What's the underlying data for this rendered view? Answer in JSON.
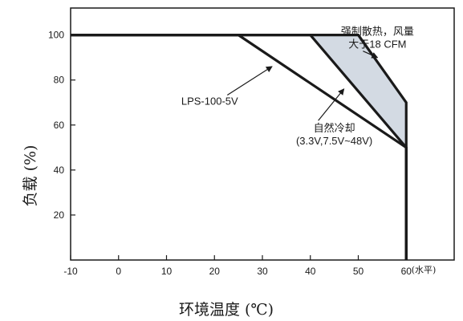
{
  "chart_data": {
    "type": "line",
    "xlabel": "环境温度 (℃)",
    "ylabel": "负载 (%)",
    "x_unit_label": "(水平)",
    "xlim": [
      -10,
      70
    ],
    "ylim": [
      0,
      112
    ],
    "x_ticks": [
      -10,
      0,
      10,
      20,
      30,
      40,
      50,
      60
    ],
    "y_ticks": [
      20,
      40,
      60,
      80,
      100
    ],
    "grid": false,
    "shaded_region": {
      "color": "#d3dae3",
      "points": [
        [
          40,
          100
        ],
        [
          50,
          100
        ],
        [
          60,
          70
        ],
        [
          60,
          50
        ]
      ]
    },
    "series": [
      {
        "name": "LPS-100-5V",
        "x": [
          -10,
          25,
          60,
          60
        ],
        "y": [
          100,
          100,
          50,
          0
        ]
      },
      {
        "name": "自然冷却 (3.3V,7.5V~48V)",
        "x": [
          -10,
          40,
          60,
          60
        ],
        "y": [
          100,
          100,
          50,
          0
        ]
      },
      {
        "name": "强制散热，风量大于18 CFM",
        "x": [
          -10,
          50,
          60,
          60
        ],
        "y": [
          100,
          100,
          70,
          0
        ]
      }
    ],
    "annotations": [
      {
        "lines": [
          "LPS-100-5V"
        ],
        "data_x": 19,
        "data_y": 69,
        "arrow_to": [
          32,
          86
        ]
      },
      {
        "lines": [
          "自然冷却",
          "(3.3V,7.5V~48V)"
        ],
        "data_x": 45,
        "data_y": 57,
        "arrow_to": [
          47,
          76
        ]
      },
      {
        "lines": [
          "强制散热，风量",
          "大于18 CFM"
        ],
        "data_x": 54,
        "data_y": 100,
        "arrow_to": [
          54,
          90
        ]
      }
    ]
  }
}
